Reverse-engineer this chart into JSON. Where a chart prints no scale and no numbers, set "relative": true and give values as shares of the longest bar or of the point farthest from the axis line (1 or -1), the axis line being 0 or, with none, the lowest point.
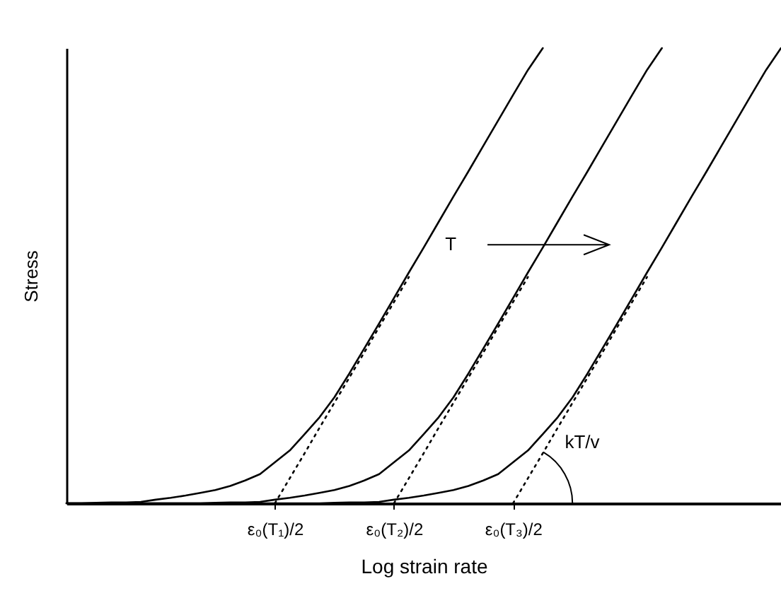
{
  "chart_data": {
    "type": "line",
    "relative": true,
    "xlabel": "Log strain rate",
    "ylabel": "Stress",
    "categories": [
      null,
      null,
      null,
      null,
      null,
      null,
      null,
      null,
      null,
      null,
      null,
      null,
      null,
      null,
      "ε₀(T₁)/2",
      null,
      null,
      null,
      null,
      null,
      null,
      null,
      "ε₀(T₂)/2",
      null,
      null,
      null,
      null,
      null,
      null,
      null,
      "ε₀(T₃)/2",
      null,
      null,
      null,
      null,
      null,
      null,
      null,
      null,
      null,
      null,
      null,
      null,
      null,
      null,
      null,
      null,
      null,
      null
    ],
    "tick_labels": "x",
    "line_style": "solid",
    "grid": false,
    "marker": "none",
    "annotations": [
      "T",
      "kT/v"
    ],
    "series": [
      {
        "color": "#000000",
        "values": [
          0,
          0,
          0.001,
          0.002,
          0.002,
          0.003,
          0.008,
          0.012,
          0.017,
          0.023,
          0.029,
          0.038,
          0.05,
          0.064,
          0.09,
          0.116,
          0.152,
          0.189,
          0.233,
          0.285,
          0.34,
          0.395,
          0.451,
          0.507,
          0.562,
          0.618,
          0.674,
          0.729,
          0.785,
          0.841,
          0.897,
          0.952,
          1,
          null,
          null,
          null,
          null,
          null,
          null,
          null,
          null,
          null,
          null,
          null,
          null,
          null,
          null,
          null,
          null
        ]
      },
      {
        "color": "#000000",
        "values": [
          0,
          0,
          0,
          0,
          0,
          0,
          0,
          0,
          0,
          0,
          0.001,
          0.002,
          0.002,
          0.003,
          0.008,
          0.012,
          0.017,
          0.023,
          0.029,
          0.038,
          0.05,
          0.064,
          0.09,
          0.116,
          0.152,
          0.189,
          0.233,
          0.285,
          0.34,
          0.395,
          0.451,
          0.507,
          0.562,
          0.618,
          0.674,
          0.729,
          0.785,
          0.841,
          0.897,
          0.952,
          1,
          null,
          null,
          null,
          null,
          null,
          null,
          null,
          null
        ]
      },
      {
        "color": "#000000",
        "values": [
          0,
          0,
          0,
          0,
          0,
          0,
          0,
          0,
          0,
          0,
          0,
          0,
          0,
          0,
          0,
          0,
          0,
          0,
          0.001,
          0.002,
          0.002,
          0.003,
          0.008,
          0.012,
          0.017,
          0.023,
          0.029,
          0.038,
          0.05,
          0.064,
          0.09,
          0.116,
          0.152,
          0.189,
          0.233,
          0.285,
          0.34,
          0.395,
          0.451,
          0.507,
          0.562,
          0.618,
          0.674,
          0.729,
          0.785,
          0.841,
          0.897,
          0.952,
          1
        ]
      },
      {
        "type": "line",
        "line_style": "dotted",
        "color": "#000000",
        "values": [
          null,
          null,
          null,
          null,
          null,
          null,
          null,
          null,
          null,
          null,
          null,
          null,
          null,
          null,
          0,
          0.055,
          0.11,
          0.166,
          0.221,
          0.276,
          0.331,
          0.387,
          0.442,
          0.497,
          null,
          null,
          null,
          null,
          null,
          null,
          null,
          null,
          null,
          null,
          null,
          null,
          null,
          null,
          null,
          null,
          null,
          null,
          null,
          null,
          null,
          null,
          null,
          null,
          null
        ]
      },
      {
        "type": "line",
        "line_style": "dotted",
        "color": "#000000",
        "values": [
          null,
          null,
          null,
          null,
          null,
          null,
          null,
          null,
          null,
          null,
          null,
          null,
          null,
          null,
          null,
          null,
          null,
          null,
          null,
          null,
          null,
          null,
          0,
          0.055,
          0.11,
          0.166,
          0.221,
          0.276,
          0.331,
          0.387,
          0.442,
          0.497,
          null,
          null,
          null,
          null,
          null,
          null,
          null,
          null,
          null,
          null,
          null,
          null,
          null,
          null,
          null,
          null,
          null
        ]
      },
      {
        "type": "line",
        "line_style": "dotted",
        "color": "#000000",
        "values": [
          null,
          null,
          null,
          null,
          null,
          null,
          null,
          null,
          null,
          null,
          null,
          null,
          null,
          null,
          null,
          null,
          null,
          null,
          null,
          null,
          null,
          null,
          null,
          null,
          null,
          null,
          null,
          null,
          null,
          null,
          0,
          0.055,
          0.11,
          0.166,
          0.221,
          0.276,
          0.331,
          0.387,
          0.442,
          0.497,
          null,
          null,
          null,
          null,
          null,
          null,
          null,
          null,
          null
        ]
      }
    ]
  }
}
